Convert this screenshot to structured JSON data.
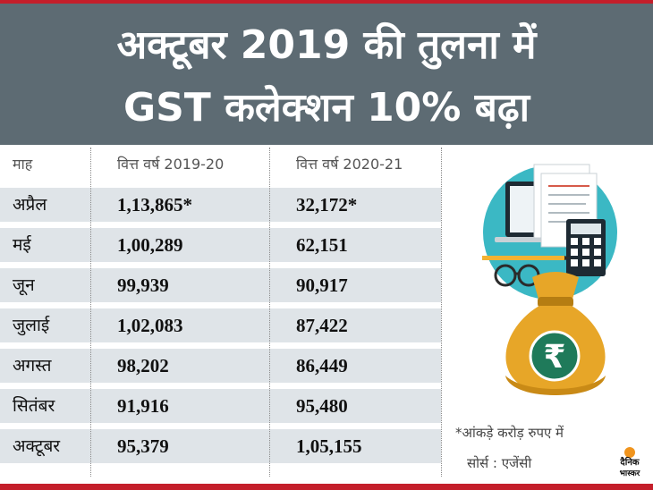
{
  "title_line1": "अक्टूबर 2019 की तुलना में",
  "title_line2": "GST कलेक्शन 10% बढ़ा",
  "table": {
    "headers": [
      "माह",
      "वित्त वर्ष 2019-20",
      "वित्त वर्ष 2020-21"
    ],
    "rows": [
      [
        "अप्रैल",
        "1,13,865*",
        "32,172*"
      ],
      [
        "मई",
        "1,00,289",
        "62,151"
      ],
      [
        "जून",
        "99,939",
        "90,917"
      ],
      [
        "जुलाई",
        "1,02,083",
        "87,422"
      ],
      [
        "अगस्त",
        "98,202",
        "86,449"
      ],
      [
        "सितंबर",
        "91,916",
        "95,480"
      ],
      [
        "अक्टूबर",
        "95,379",
        "1,05,155"
      ]
    ]
  },
  "note": "*आंकड़े करोड़ रुपए में",
  "source": "सोर्स : एजेंसी",
  "logo": {
    "line1": "दैनिक",
    "line2": "भास्कर"
  },
  "illustration": {
    "symbol": "₹",
    "icon": "money-bag-icon"
  },
  "colors": {
    "header_bg": "#5d6b73",
    "accent_red": "#c41e2a",
    "row_shade": "#dfe4e8",
    "bag_gold": "#e7a628",
    "coin_green": "#1f7a5a",
    "circle_teal": "#3bb8c4"
  }
}
